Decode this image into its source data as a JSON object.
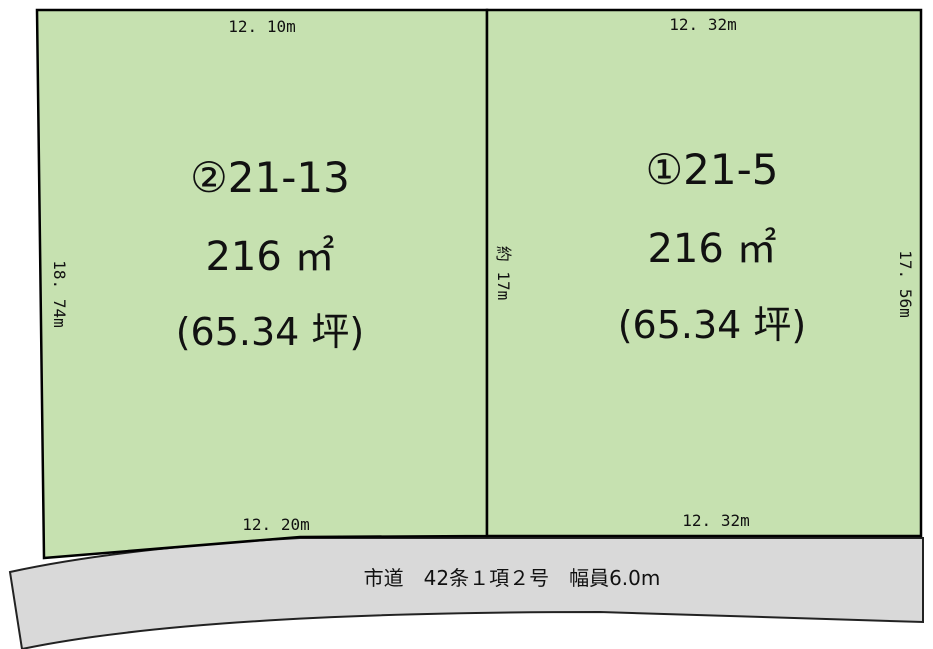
{
  "colors": {
    "lot_fill": "#c6e1b0",
    "lot_stroke": "#000000",
    "road_fill": "#d9d9d9",
    "road_stroke": "#222222"
  },
  "lots": [
    {
      "id": "lot-2",
      "number": "②21-13",
      "area": "216 ㎡",
      "tsubo": "(65.34 坪)",
      "top_dim": "12. 10m",
      "bottom_dim": "12. 20m",
      "side_dim": "18. 74m"
    },
    {
      "id": "lot-1",
      "number": "①21-5",
      "area": "216 ㎡",
      "tsubo": "(65.34 坪)",
      "top_dim": "12. 32m",
      "bottom_dim": "12. 32m",
      "side_dim": "17. 56m"
    }
  ],
  "shared_boundary_dim": "約 17m",
  "road": {
    "label": "市道　42条１項２号　幅員6.0m"
  }
}
